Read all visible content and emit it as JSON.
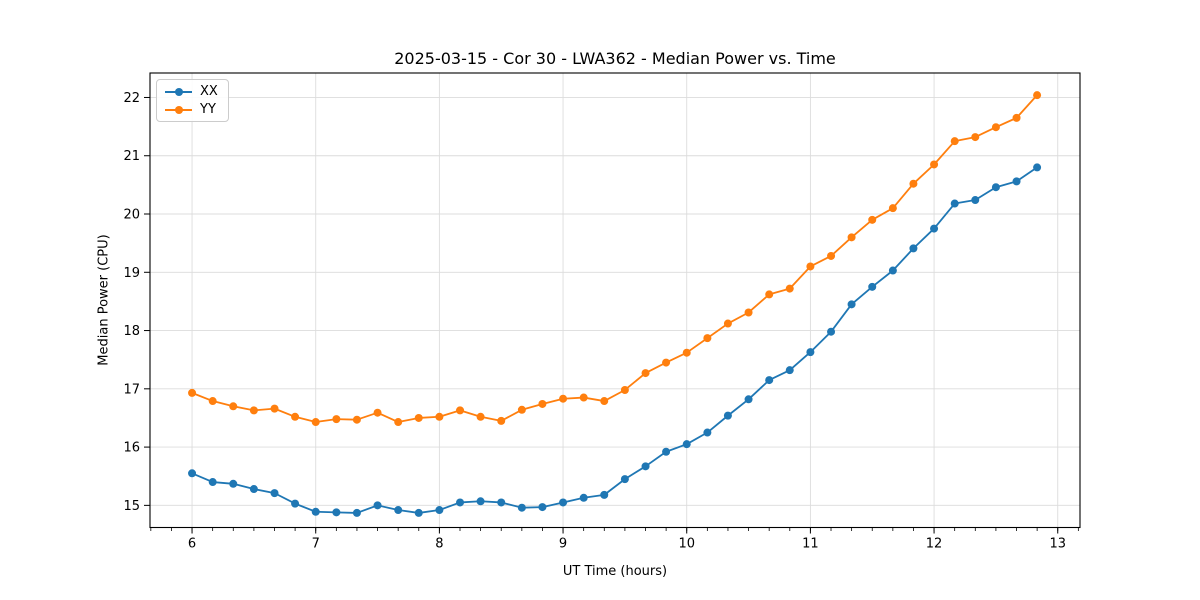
{
  "chart_data": {
    "type": "line",
    "title": "2025-03-15 - Cor 30 - LWA362 - Median Power vs. Time",
    "xlabel": "UT Time (hours)",
    "ylabel": "Median Power (CPU)",
    "xlim": [
      5.66,
      13.18
    ],
    "ylim": [
      14.62,
      22.42
    ],
    "x_ticks": [
      6,
      7,
      8,
      9,
      10,
      11,
      12,
      13
    ],
    "y_ticks": [
      15,
      16,
      17,
      18,
      19,
      20,
      21,
      22
    ],
    "x_minor_step": 0.166667,
    "grid": true,
    "grid_color": "#dcdcdc",
    "legend_position": "upper left",
    "x": [
      6.0,
      6.167,
      6.333,
      6.5,
      6.667,
      6.833,
      7.0,
      7.167,
      7.333,
      7.5,
      7.667,
      7.833,
      8.0,
      8.167,
      8.333,
      8.5,
      8.667,
      8.833,
      9.0,
      9.167,
      9.333,
      9.5,
      9.667,
      9.833,
      10.0,
      10.167,
      10.333,
      10.5,
      10.667,
      10.833,
      11.0,
      11.167,
      11.333,
      11.5,
      11.667,
      11.833,
      12.0,
      12.167,
      12.333,
      12.5,
      12.667,
      12.833
    ],
    "series": [
      {
        "name": "XX",
        "color": "#1f77b4",
        "values": [
          15.55,
          15.4,
          15.37,
          15.28,
          15.21,
          15.03,
          14.89,
          14.88,
          14.87,
          15.0,
          14.92,
          14.87,
          14.92,
          15.05,
          15.07,
          15.05,
          14.96,
          14.97,
          15.05,
          15.13,
          15.18,
          15.45,
          15.67,
          15.92,
          16.05,
          16.25,
          16.54,
          16.82,
          17.15,
          17.32,
          17.63,
          17.98,
          18.45,
          18.75,
          19.03,
          19.41,
          19.75,
          20.18,
          20.24,
          20.46,
          20.56,
          20.8
        ]
      },
      {
        "name": "YY",
        "color": "#ff7f0e",
        "values": [
          16.93,
          16.79,
          16.7,
          16.63,
          16.66,
          16.52,
          16.43,
          16.48,
          16.47,
          16.59,
          16.43,
          16.5,
          16.52,
          16.63,
          16.52,
          16.45,
          16.64,
          16.74,
          16.83,
          16.85,
          16.79,
          16.98,
          17.27,
          17.45,
          17.62,
          17.87,
          18.12,
          18.31,
          18.62,
          18.72,
          19.1,
          19.28,
          19.6,
          19.9,
          20.1,
          20.52,
          20.85,
          21.25,
          21.32,
          21.49,
          21.65,
          22.04
        ]
      }
    ]
  }
}
